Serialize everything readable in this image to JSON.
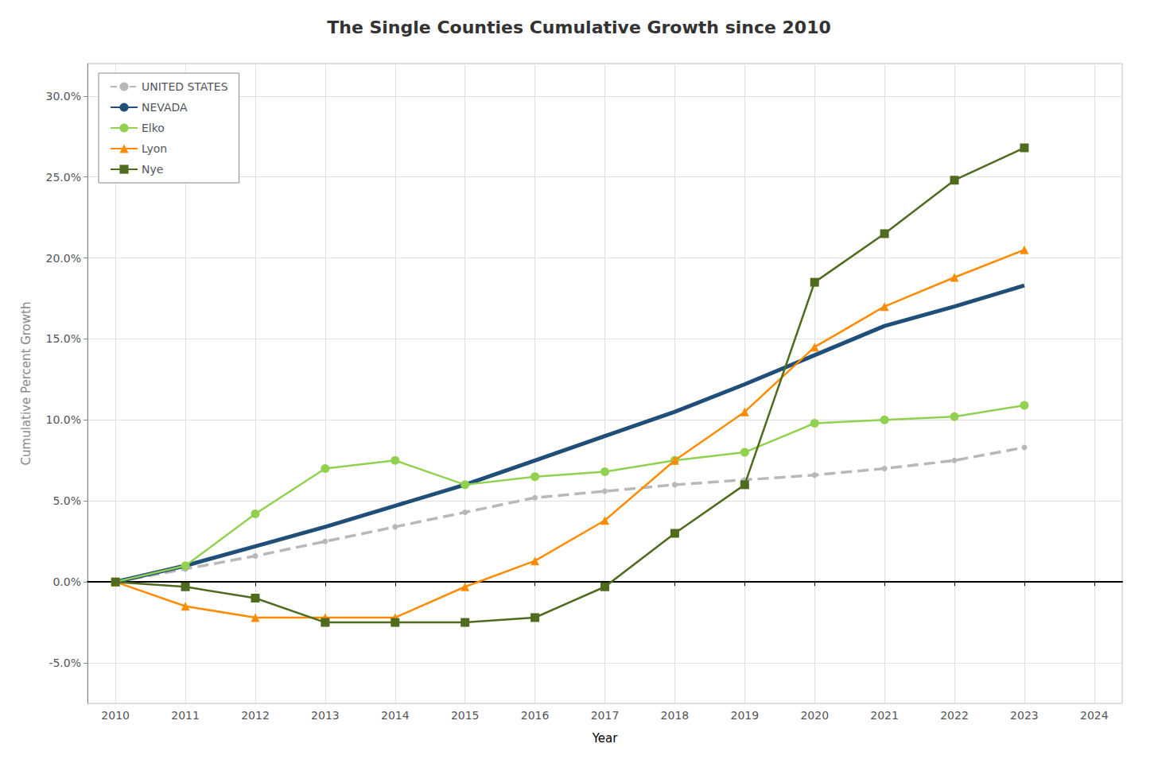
{
  "chart_data": {
    "type": "line",
    "title": "The Single Counties Cumulative Growth since 2010",
    "x_label": "Year",
    "y_label": "Cumulative Percent Growth",
    "x": [
      2010,
      2011,
      2012,
      2013,
      2014,
      2015,
      2016,
      2017,
      2018,
      2019,
      2020,
      2021,
      2022,
      2023
    ],
    "series": [
      {
        "name": "UNITED STATES",
        "color": "#b8b8b8",
        "marker": "circle",
        "line_style": "dashed",
        "values": [
          0.0,
          0.008,
          0.016,
          0.025,
          0.034,
          0.043,
          0.052,
          0.056,
          0.06,
          0.063,
          0.066,
          0.07,
          0.075,
          0.083
        ]
      },
      {
        "name": "NEVADA",
        "color": "#1F4E79",
        "marker": "none",
        "line_style": "solid",
        "values": [
          0.0,
          0.01,
          0.022,
          0.034,
          0.047,
          0.06,
          0.075,
          0.09,
          0.105,
          0.122,
          0.14,
          0.158,
          0.17,
          0.183
        ]
      },
      {
        "name": "Elko",
        "color": "#92D050",
        "marker": "circle",
        "line_style": "solid",
        "values": [
          0.0,
          0.01,
          0.042,
          0.07,
          0.075,
          0.06,
          0.065,
          0.068,
          0.075,
          0.08,
          0.098,
          0.1,
          0.102,
          0.109
        ]
      },
      {
        "name": "Lyon",
        "color": "#FF8C00",
        "marker": "triangle",
        "line_style": "solid",
        "values": [
          0.0,
          -0.015,
          -0.022,
          -0.022,
          -0.022,
          -0.003,
          0.013,
          0.038,
          0.075,
          0.105,
          0.145,
          0.17,
          0.188,
          0.205
        ]
      },
      {
        "name": "Nye",
        "color": "#4E6B1E",
        "marker": "square",
        "line_style": "solid",
        "values": [
          0.0,
          -0.003,
          -0.01,
          -0.025,
          -0.025,
          -0.025,
          -0.022,
          -0.003,
          0.03,
          0.06,
          0.185,
          0.215,
          0.248,
          0.268
        ]
      }
    ],
    "xlim": [
      2009.6,
      2024.4
    ],
    "xticks": [
      2010,
      2011,
      2012,
      2013,
      2014,
      2015,
      2016,
      2017,
      2018,
      2019,
      2020,
      2021,
      2022,
      2023,
      2024
    ],
    "ylim": [
      -0.075,
      0.32
    ],
    "yticks": [
      {
        "value": -0.05,
        "label": "-5.0%"
      },
      {
        "value": 0.0,
        "label": "0.0%"
      },
      {
        "value": 0.05,
        "label": "5.0%"
      },
      {
        "value": 0.1,
        "label": "10.0%"
      },
      {
        "value": 0.15,
        "label": "15.0%"
      },
      {
        "value": 0.2,
        "label": "20.0%"
      },
      {
        "value": 0.25,
        "label": "25.0%"
      },
      {
        "value": 0.3,
        "label": "30.0%"
      }
    ],
    "grid": true,
    "legend": "upper left"
  }
}
